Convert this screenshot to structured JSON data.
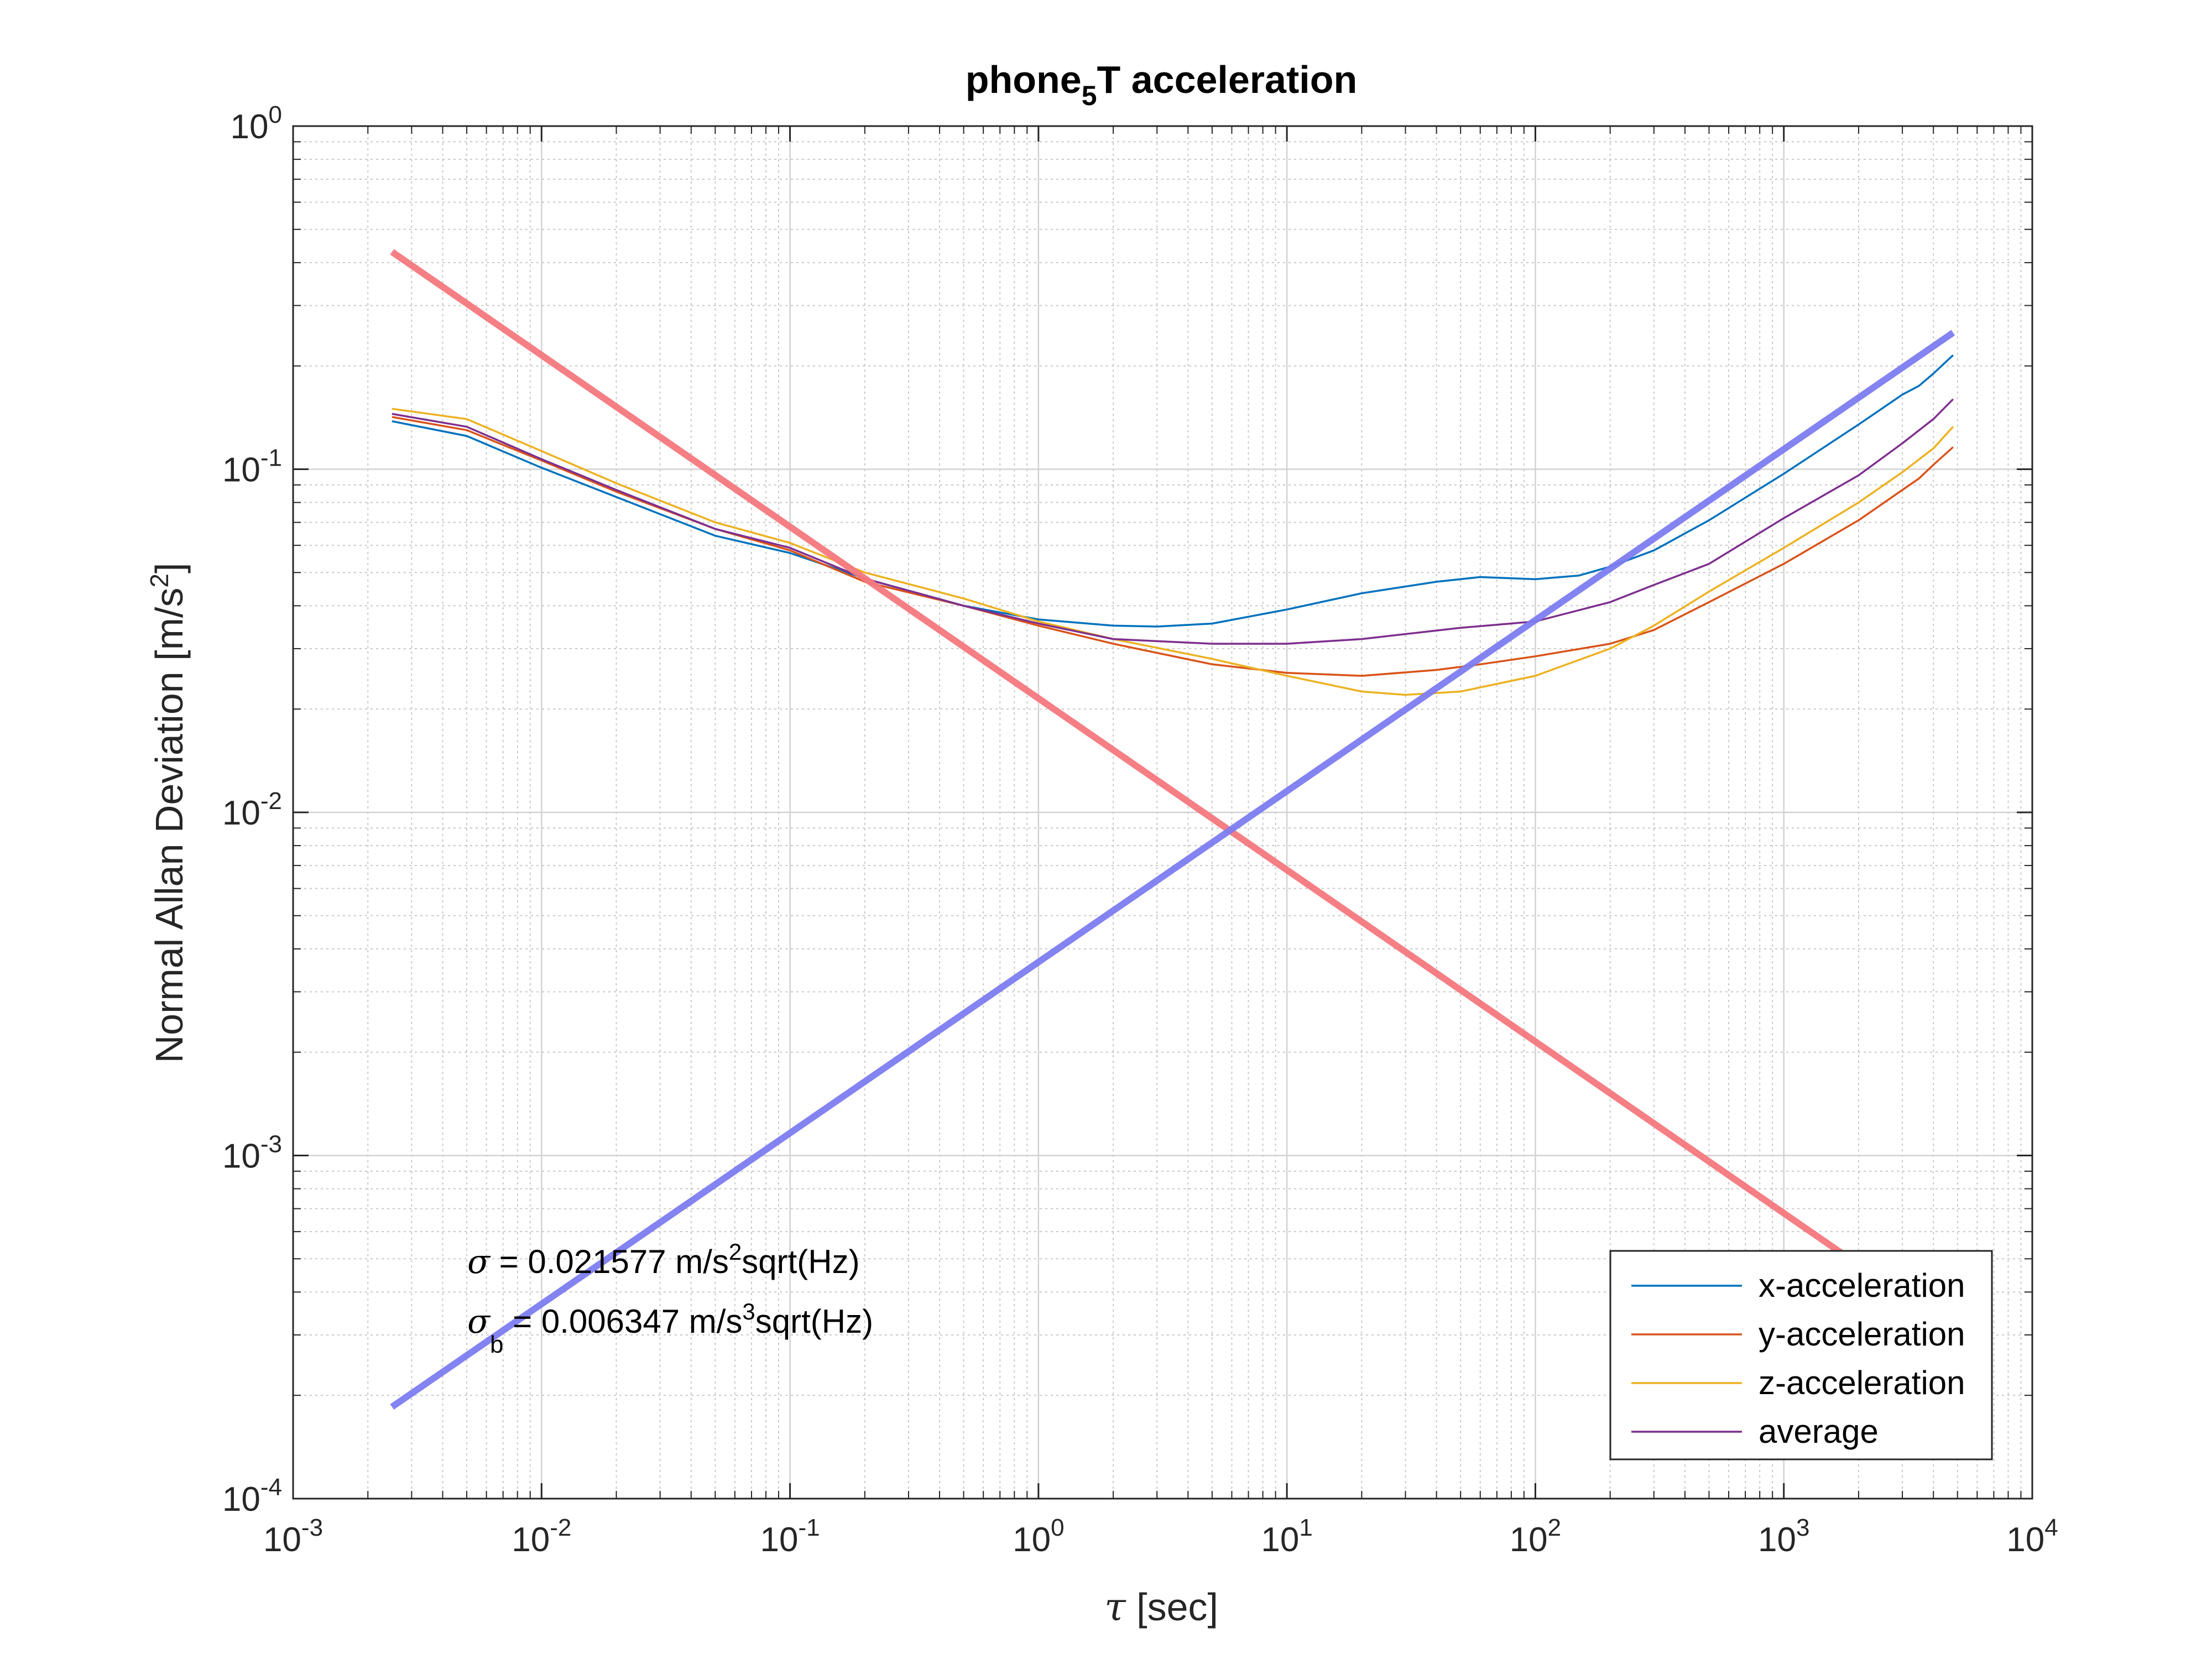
{
  "chart_data": {
    "type": "line",
    "title": {
      "main": "phone",
      "sub": "5",
      "rest": "T acceleration"
    },
    "xlabel": {
      "symbol": "τ",
      "text": " [sec]"
    },
    "ylabel": {
      "text": "Normal Allan Deviation [m/s",
      "sup": "2",
      "end": "]"
    },
    "x_scale": "log",
    "y_scale": "log",
    "xlim": [
      0.001,
      10000
    ],
    "ylim": [
      0.0001,
      1
    ],
    "x_ticks": [
      {
        "value": 0.001,
        "base": "10",
        "exp": "-3"
      },
      {
        "value": 0.01,
        "base": "10",
        "exp": "-2"
      },
      {
        "value": 0.1,
        "base": "10",
        "exp": "-1"
      },
      {
        "value": 1,
        "base": "10",
        "exp": "0"
      },
      {
        "value": 10,
        "base": "10",
        "exp": "1"
      },
      {
        "value": 100,
        "base": "10",
        "exp": "2"
      },
      {
        "value": 1000,
        "base": "10",
        "exp": "3"
      },
      {
        "value": 10000,
        "base": "10",
        "exp": "4"
      }
    ],
    "y_ticks": [
      {
        "value": 0.0001,
        "base": "10",
        "exp": "-4"
      },
      {
        "value": 0.001,
        "base": "10",
        "exp": "-3"
      },
      {
        "value": 0.01,
        "base": "10",
        "exp": "-2"
      },
      {
        "value": 0.1,
        "base": "10",
        "exp": "-1"
      },
      {
        "value": 1,
        "base": "10",
        "exp": "0"
      }
    ],
    "grid": true,
    "legend_position": "bottom-right",
    "series": [
      {
        "name": "x-acceleration",
        "color": "#0072BD",
        "points": [
          [
            0.0025,
            0.138
          ],
          [
            0.005,
            0.125
          ],
          [
            0.01,
            0.101
          ],
          [
            0.02,
            0.083
          ],
          [
            0.05,
            0.064
          ],
          [
            0.1,
            0.057
          ],
          [
            0.2,
            0.048
          ],
          [
            0.5,
            0.04
          ],
          [
            1,
            0.0365
          ],
          [
            2,
            0.035
          ],
          [
            3,
            0.0348
          ],
          [
            5,
            0.0355
          ],
          [
            10,
            0.039
          ],
          [
            20,
            0.0435
          ],
          [
            40,
            0.047
          ],
          [
            60,
            0.0485
          ],
          [
            100,
            0.0478
          ],
          [
            150,
            0.049
          ],
          [
            200,
            0.052
          ],
          [
            300,
            0.058
          ],
          [
            500,
            0.071
          ],
          [
            1000,
            0.097
          ],
          [
            2000,
            0.135
          ],
          [
            3000,
            0.165
          ],
          [
            3500,
            0.175
          ],
          [
            4000,
            0.19
          ],
          [
            4800,
            0.215
          ]
        ]
      },
      {
        "name": "y-acceleration",
        "color": "#D95319",
        "points": [
          [
            0.0025,
            0.142
          ],
          [
            0.005,
            0.13
          ],
          [
            0.01,
            0.106
          ],
          [
            0.02,
            0.086
          ],
          [
            0.05,
            0.067
          ],
          [
            0.1,
            0.058
          ],
          [
            0.2,
            0.047
          ],
          [
            0.5,
            0.04
          ],
          [
            1,
            0.035
          ],
          [
            2,
            0.031
          ],
          [
            5,
            0.027
          ],
          [
            10,
            0.0255
          ],
          [
            20,
            0.025
          ],
          [
            40,
            0.026
          ],
          [
            60,
            0.027
          ],
          [
            100,
            0.0285
          ],
          [
            200,
            0.031
          ],
          [
            300,
            0.034
          ],
          [
            500,
            0.041
          ],
          [
            1000,
            0.053
          ],
          [
            2000,
            0.071
          ],
          [
            3000,
            0.087
          ],
          [
            3500,
            0.094
          ],
          [
            4000,
            0.103
          ],
          [
            4800,
            0.116
          ]
        ]
      },
      {
        "name": "z-acceleration",
        "color": "#EDB120",
        "points": [
          [
            0.0025,
            0.15
          ],
          [
            0.005,
            0.14
          ],
          [
            0.01,
            0.113
          ],
          [
            0.02,
            0.091
          ],
          [
            0.05,
            0.07
          ],
          [
            0.1,
            0.061
          ],
          [
            0.2,
            0.05
          ],
          [
            0.5,
            0.042
          ],
          [
            1,
            0.036
          ],
          [
            2,
            0.032
          ],
          [
            5,
            0.028
          ],
          [
            10,
            0.025
          ],
          [
            20,
            0.0225
          ],
          [
            30,
            0.022
          ],
          [
            50,
            0.0225
          ],
          [
            100,
            0.025
          ],
          [
            200,
            0.03
          ],
          [
            300,
            0.035
          ],
          [
            500,
            0.044
          ],
          [
            1000,
            0.059
          ],
          [
            2000,
            0.08
          ],
          [
            3000,
            0.098
          ],
          [
            4000,
            0.115
          ],
          [
            4800,
            0.133
          ]
        ]
      },
      {
        "name": "average",
        "color": "#7E2F8E",
        "points": [
          [
            0.0025,
            0.145
          ],
          [
            0.005,
            0.133
          ],
          [
            0.01,
            0.107
          ],
          [
            0.02,
            0.087
          ],
          [
            0.05,
            0.067
          ],
          [
            0.1,
            0.059
          ],
          [
            0.2,
            0.048
          ],
          [
            0.5,
            0.04
          ],
          [
            1,
            0.0355
          ],
          [
            2,
            0.032
          ],
          [
            5,
            0.031
          ],
          [
            10,
            0.031
          ],
          [
            20,
            0.032
          ],
          [
            50,
            0.0345
          ],
          [
            100,
            0.036
          ],
          [
            200,
            0.041
          ],
          [
            300,
            0.046
          ],
          [
            500,
            0.053
          ],
          [
            1000,
            0.072
          ],
          [
            2000,
            0.096
          ],
          [
            3000,
            0.119
          ],
          [
            4000,
            0.14
          ],
          [
            4800,
            0.16
          ]
        ]
      },
      {
        "color": "#F4787D",
        "points": [
          [
            0.0025,
            0.43
          ],
          [
            2000,
            0.00048
          ]
        ]
      },
      {
        "color": "#7C7CF0",
        "points": [
          [
            0.0025,
            0.000185
          ],
          [
            4800,
            0.25
          ]
        ]
      }
    ],
    "annotations": [
      {
        "symbol": "σ",
        "sub": "",
        "text1": " = 0.021577 m/s",
        "sup": "2",
        "text2": "sqrt(Hz)"
      },
      {
        "symbol": "σ",
        "sub": "b",
        "text1": " = 0.006347 m/s",
        "sup": "3",
        "text2": "sqrt(Hz)"
      }
    ]
  }
}
